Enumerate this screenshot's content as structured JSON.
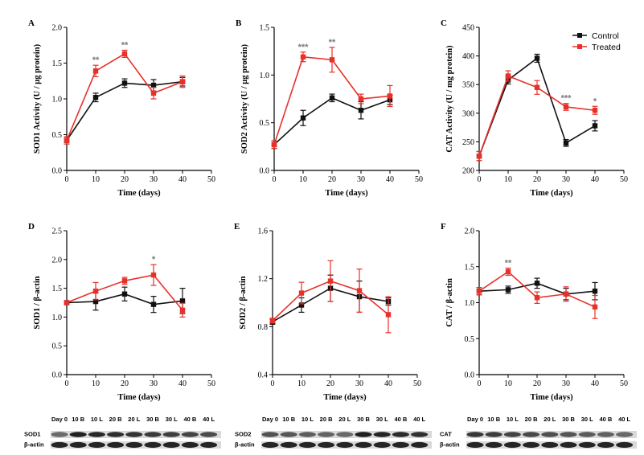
{
  "colors": {
    "control": "#111111",
    "treated": "#e8302a",
    "star": "#7a7a7a"
  },
  "legend": {
    "control": "Control",
    "treated": "Treated",
    "placement": "top-right of panel C"
  },
  "chart_data": [
    {
      "id": "A",
      "type": "line",
      "letter": "A",
      "ylabel": "SOD1 Activity (U / μg protein)",
      "xlabel": "Time (days)",
      "xlim": [
        0,
        50
      ],
      "xticks": [
        0,
        10,
        20,
        30,
        40,
        50
      ],
      "ylim": [
        0.0,
        2.0
      ],
      "yticks": [
        "0.0",
        "0.5",
        "1.0",
        "1.5",
        "2.0"
      ],
      "x": [
        0,
        10,
        20,
        30,
        40
      ],
      "series": [
        {
          "name": "Control",
          "values": [
            0.42,
            1.02,
            1.22,
            1.19,
            1.24
          ],
          "errors": [
            0.05,
            0.06,
            0.06,
            0.08,
            0.06
          ]
        },
        {
          "name": "Treated",
          "values": [
            0.42,
            1.39,
            1.63,
            1.08,
            1.24
          ],
          "errors": [
            0.05,
            0.08,
            0.05,
            0.08,
            0.08
          ]
        }
      ],
      "annotations": [
        {
          "x": 10,
          "text": "**"
        },
        {
          "x": 20,
          "text": "**"
        }
      ]
    },
    {
      "id": "B",
      "type": "line",
      "letter": "B",
      "ylabel": "SOD2 Activity (U / μg protein)",
      "xlabel": "Time (days)",
      "xlim": [
        0,
        50
      ],
      "xticks": [
        0,
        10,
        20,
        30,
        40,
        50
      ],
      "ylim": [
        0.0,
        1.5
      ],
      "yticks": [
        "0.0",
        "0.5",
        "1.0",
        "1.5"
      ],
      "x": [
        0,
        10,
        20,
        30,
        40
      ],
      "series": [
        {
          "name": "Control",
          "values": [
            0.27,
            0.55,
            0.76,
            0.63,
            0.74
          ],
          "errors": [
            0.04,
            0.08,
            0.04,
            0.09,
            0.05
          ]
        },
        {
          "name": "Treated",
          "values": [
            0.27,
            1.19,
            1.16,
            0.75,
            0.78
          ],
          "errors": [
            0.04,
            0.05,
            0.13,
            0.05,
            0.11
          ]
        }
      ],
      "annotations": [
        {
          "x": 10,
          "text": "***"
        },
        {
          "x": 20,
          "text": "**"
        }
      ]
    },
    {
      "id": "C",
      "type": "line",
      "letter": "C",
      "ylabel": "CAT Activity (U / mg protein)",
      "xlabel": "Time (days)",
      "xlim": [
        0,
        50
      ],
      "xticks": [
        0,
        10,
        20,
        30,
        40,
        50
      ],
      "ylim": [
        200,
        450
      ],
      "yticks": [
        "200",
        "250",
        "300",
        "350",
        "400",
        "450"
      ],
      "x": [
        0,
        10,
        20,
        30,
        40
      ],
      "series": [
        {
          "name": "Control",
          "values": [
            225,
            358,
            396,
            248,
            278
          ],
          "errors": [
            8,
            7,
            7,
            6,
            9
          ]
        },
        {
          "name": "Treated",
          "values": [
            225,
            365,
            345,
            311,
            305
          ],
          "errors": [
            8,
            9,
            12,
            6,
            7
          ]
        }
      ],
      "annotations": [
        {
          "x": 30,
          "text": "***"
        },
        {
          "x": 40,
          "text": "*"
        }
      ]
    },
    {
      "id": "D",
      "type": "line",
      "letter": "D",
      "ylabel": "SOD1 / β-actin",
      "xlabel": "Time (days)",
      "xlim": [
        0,
        50
      ],
      "xticks": [
        0,
        10,
        20,
        30,
        40,
        50
      ],
      "ylim": [
        0.0,
        2.5
      ],
      "yticks": [
        "0.0",
        "0.5",
        "1.0",
        "1.5",
        "2.0",
        "2.5"
      ],
      "x": [
        0,
        10,
        20,
        30,
        40
      ],
      "series": [
        {
          "name": "Control",
          "values": [
            1.25,
            1.27,
            1.4,
            1.22,
            1.28
          ],
          "errors": [
            0.02,
            0.15,
            0.12,
            0.14,
            0.22
          ]
        },
        {
          "name": "Treated",
          "values": [
            1.25,
            1.45,
            1.63,
            1.73,
            1.12
          ],
          "errors": [
            0.02,
            0.15,
            0.06,
            0.18,
            0.12
          ]
        }
      ],
      "annotations": [
        {
          "x": 30,
          "text": "*"
        }
      ]
    },
    {
      "id": "E",
      "type": "line",
      "letter": "E",
      "ylabel": "SOD2 / β-actin",
      "xlabel": "Time (days)",
      "xlim": [
        0,
        50
      ],
      "xticks": [
        0,
        10,
        20,
        30,
        40,
        50
      ],
      "ylim": [
        0.4,
        1.6
      ],
      "yticks": [
        "0.4",
        "0.8",
        "1.2",
        "1.6"
      ],
      "x": [
        0,
        10,
        20,
        30,
        40
      ],
      "series": [
        {
          "name": "Control",
          "values": [
            0.84,
            0.98,
            1.12,
            1.05,
            1.01
          ],
          "errors": [
            0.02,
            0.06,
            0.11,
            0.13,
            0.03
          ]
        },
        {
          "name": "Treated",
          "values": [
            0.85,
            1.08,
            1.18,
            1.1,
            0.9
          ],
          "errors": [
            0.02,
            0.09,
            0.17,
            0.18,
            0.15
          ]
        }
      ],
      "annotations": []
    },
    {
      "id": "F",
      "type": "line",
      "letter": "F",
      "ylabel": "CAT / β-actin",
      "xlabel": "Time (days)",
      "xlim": [
        0,
        50
      ],
      "xticks": [
        0,
        10,
        20,
        30,
        40,
        50
      ],
      "ylim": [
        0.0,
        2.0
      ],
      "yticks": [
        "0.0",
        "0.5",
        "1.0",
        "1.5",
        "2.0"
      ],
      "x": [
        0,
        10,
        20,
        30,
        40
      ],
      "series": [
        {
          "name": "Control",
          "values": [
            1.16,
            1.18,
            1.27,
            1.12,
            1.16
          ],
          "errors": [
            0.05,
            0.05,
            0.07,
            0.08,
            0.12
          ]
        },
        {
          "name": "Treated",
          "values": [
            1.16,
            1.43,
            1.07,
            1.12,
            0.94
          ],
          "errors": [
            0.05,
            0.05,
            0.08,
            0.1,
            0.16
          ]
        }
      ],
      "annotations": [
        {
          "x": 10,
          "text": "**"
        }
      ]
    }
  ],
  "blots": [
    {
      "panel": "D",
      "lanes": [
        "Day 0",
        "10 B",
        "10 L",
        "20 B",
        "20 L",
        "30 B",
        "30 L",
        "40 B",
        "40 L"
      ],
      "rows": [
        "SOD1",
        "β-actin"
      ]
    },
    {
      "panel": "E",
      "lanes": [
        "Day 0",
        "10 B",
        "10 L",
        "20 B",
        "20 L",
        "30 B",
        "30 L",
        "40 B",
        "40 L"
      ],
      "rows": [
        "SOD2",
        "β-actin"
      ]
    },
    {
      "panel": "F",
      "lanes": [
        "Day 0",
        "10 B",
        "10 L",
        "20 B",
        "20 L",
        "30 B",
        "30 L",
        "40 B",
        "40 L"
      ],
      "rows": [
        "CAT",
        "β-actin"
      ]
    }
  ]
}
